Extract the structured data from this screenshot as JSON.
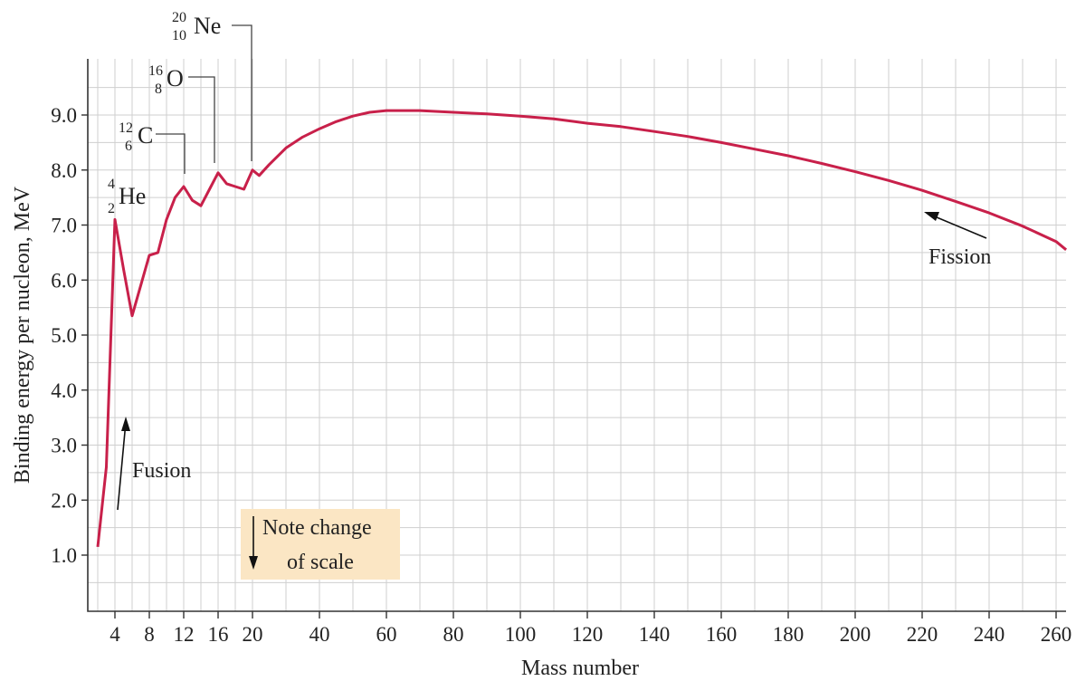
{
  "chart_data": {
    "type": "line",
    "xlabel": "Mass number",
    "ylabel": "Binding energy per nucleon, MeV",
    "ylim": [
      0.4,
      10
    ],
    "grid": true,
    "x_ticks": [
      4,
      8,
      12,
      16,
      20,
      40,
      60,
      80,
      100,
      120,
      140,
      160,
      180,
      200,
      220,
      240,
      260
    ],
    "y_ticks": [
      "1.0",
      "2.0",
      "3.0",
      "4.0",
      "5.0",
      "6.0",
      "7.0",
      "8.0",
      "9.0"
    ],
    "series": [
      {
        "color": "#c8204a",
        "points": [
          [
            2,
            1.15
          ],
          [
            3,
            2.6
          ],
          [
            4,
            7.1
          ],
          [
            5,
            6.2
          ],
          [
            6,
            5.35
          ],
          [
            7,
            5.9
          ],
          [
            8,
            6.45
          ],
          [
            9,
            6.5
          ],
          [
            10,
            7.1
          ],
          [
            11,
            7.5
          ],
          [
            12,
            7.7
          ],
          [
            13,
            7.45
          ],
          [
            14,
            7.35
          ],
          [
            15,
            7.65
          ],
          [
            16,
            7.95
          ],
          [
            17,
            7.75
          ],
          [
            18,
            7.7
          ],
          [
            19,
            7.65
          ],
          [
            20,
            8.0
          ],
          [
            22,
            7.9
          ],
          [
            25,
            8.1
          ],
          [
            30,
            8.4
          ],
          [
            35,
            8.6
          ],
          [
            40,
            8.75
          ],
          [
            45,
            8.88
          ],
          [
            50,
            8.98
          ],
          [
            55,
            9.05
          ],
          [
            60,
            9.08
          ],
          [
            70,
            9.08
          ],
          [
            80,
            9.05
          ],
          [
            90,
            9.02
          ],
          [
            100,
            8.98
          ],
          [
            110,
            8.93
          ],
          [
            120,
            8.85
          ],
          [
            130,
            8.79
          ],
          [
            140,
            8.7
          ],
          [
            150,
            8.61
          ],
          [
            160,
            8.5
          ],
          [
            170,
            8.38
          ],
          [
            180,
            8.26
          ],
          [
            190,
            8.12
          ],
          [
            200,
            7.97
          ],
          [
            210,
            7.81
          ],
          [
            220,
            7.63
          ],
          [
            230,
            7.43
          ],
          [
            240,
            7.22
          ],
          [
            250,
            6.98
          ],
          [
            260,
            6.7
          ],
          [
            263,
            6.55
          ]
        ]
      }
    ],
    "isotope_labels": [
      {
        "mass": "4",
        "atomic": "2",
        "symbol": "He"
      },
      {
        "mass": "12",
        "atomic": "6",
        "symbol": "C"
      },
      {
        "mass": "16",
        "atomic": "8",
        "symbol": "O"
      },
      {
        "mass": "20",
        "atomic": "10",
        "symbol": "Ne"
      }
    ],
    "annotations": {
      "fusion": "Fusion",
      "fission": "Fission",
      "scale_note_line1": "Note change",
      "scale_note_line2": "of scale"
    }
  },
  "colors": {
    "curve": "#c8204a",
    "grid": "#cfcfcf",
    "note_box": "#fbe6c4"
  }
}
